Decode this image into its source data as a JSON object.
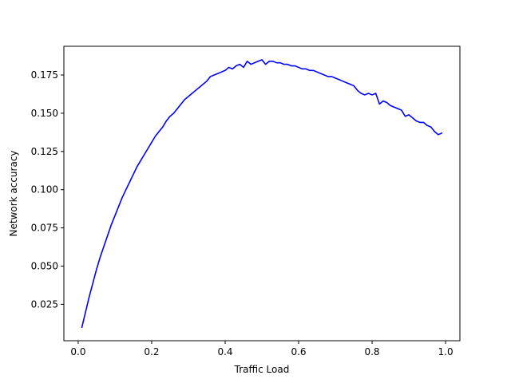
{
  "chart_data": {
    "type": "line",
    "title": "",
    "xlabel": "Traffic Load",
    "ylabel": "Network accuracy",
    "xlim": [
      -0.039,
      1.039
    ],
    "ylim": [
      0.0012,
      0.1938
    ],
    "xticks": [
      0.0,
      0.2,
      0.4,
      0.6,
      0.8,
      1.0
    ],
    "xtick_labels": [
      "0.0",
      "0.2",
      "0.4",
      "0.6",
      "0.8",
      "1.0"
    ],
    "yticks": [
      0.025,
      0.05,
      0.075,
      0.1,
      0.125,
      0.15,
      0.175
    ],
    "ytick_labels": [
      "0.025",
      "0.050",
      "0.075",
      "0.100",
      "0.125",
      "0.150",
      "0.175"
    ],
    "grid": false,
    "legend": "none",
    "series": [
      {
        "color": "#0000ff",
        "x": [
          0.01,
          0.02,
          0.03,
          0.04,
          0.05,
          0.06,
          0.07,
          0.08,
          0.09,
          0.1,
          0.11,
          0.12,
          0.13,
          0.14,
          0.15,
          0.16,
          0.17,
          0.18,
          0.19,
          0.2,
          0.21,
          0.22,
          0.23,
          0.24,
          0.25,
          0.26,
          0.27,
          0.28,
          0.29,
          0.3,
          0.31,
          0.32,
          0.33,
          0.34,
          0.35,
          0.36,
          0.37,
          0.38,
          0.39,
          0.4,
          0.41,
          0.42,
          0.43,
          0.44,
          0.45,
          0.46,
          0.47,
          0.48,
          0.49,
          0.5,
          0.51,
          0.52,
          0.53,
          0.54,
          0.55,
          0.56,
          0.57,
          0.58,
          0.59,
          0.6,
          0.61,
          0.62,
          0.63,
          0.64,
          0.65,
          0.66,
          0.67,
          0.68,
          0.69,
          0.7,
          0.71,
          0.72,
          0.73,
          0.74,
          0.75,
          0.76,
          0.77,
          0.78,
          0.79,
          0.8,
          0.81,
          0.82,
          0.83,
          0.84,
          0.85,
          0.86,
          0.87,
          0.88,
          0.89,
          0.9,
          0.91,
          0.92,
          0.93,
          0.94,
          0.95,
          0.96,
          0.97,
          0.98,
          0.99
        ],
        "y": [
          0.01,
          0.02,
          0.03,
          0.039,
          0.048,
          0.056,
          0.063,
          0.07,
          0.077,
          0.083,
          0.089,
          0.095,
          0.1,
          0.105,
          0.11,
          0.115,
          0.119,
          0.123,
          0.127,
          0.131,
          0.135,
          0.138,
          0.141,
          0.145,
          0.148,
          0.15,
          0.153,
          0.156,
          0.159,
          0.161,
          0.163,
          0.165,
          0.167,
          0.169,
          0.171,
          0.174,
          0.175,
          0.176,
          0.177,
          0.178,
          0.18,
          0.179,
          0.181,
          0.182,
          0.18,
          0.184,
          0.182,
          0.183,
          0.184,
          0.185,
          0.182,
          0.184,
          0.184,
          0.183,
          0.183,
          0.182,
          0.182,
          0.181,
          0.181,
          0.18,
          0.179,
          0.179,
          0.178,
          0.178,
          0.177,
          0.176,
          0.175,
          0.174,
          0.174,
          0.173,
          0.172,
          0.171,
          0.17,
          0.169,
          0.168,
          0.165,
          0.163,
          0.162,
          0.163,
          0.162,
          0.163,
          0.156,
          0.158,
          0.157,
          0.155,
          0.154,
          0.153,
          0.152,
          0.148,
          0.149,
          0.147,
          0.145,
          0.144,
          0.144,
          0.142,
          0.141,
          0.138,
          0.136,
          0.137
        ]
      }
    ]
  }
}
